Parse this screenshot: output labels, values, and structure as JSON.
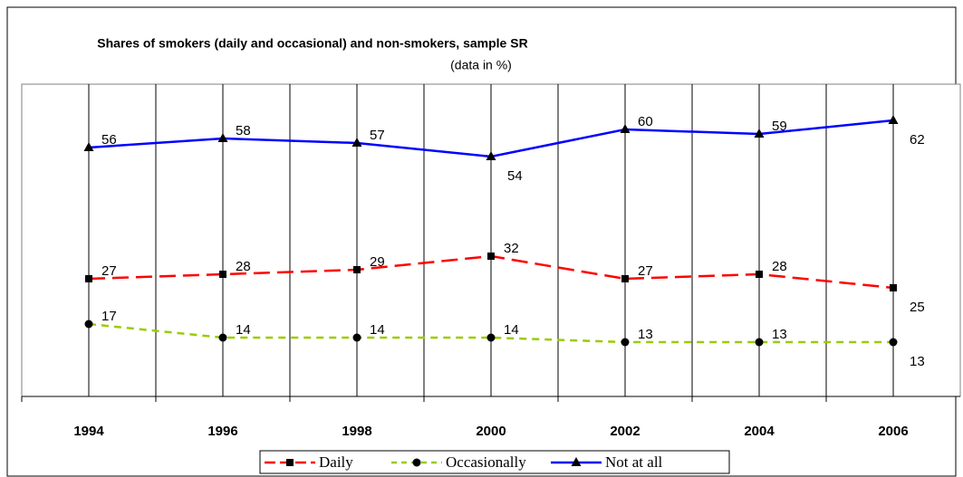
{
  "chart_data": {
    "type": "line",
    "title": "Shares of smokers (daily and occasional) and non-smokers, sample SR",
    "subtitle": "(data in %)",
    "categories": [
      "1994",
      "1996",
      "1998",
      "2000",
      "2002",
      "2004",
      "2006"
    ],
    "series": [
      {
        "name": "Daily",
        "color": "#ff0000",
        "values": [
          27,
          28,
          29,
          32,
          27,
          28,
          25
        ]
      },
      {
        "name": "Occasionally",
        "color": "#99cc00",
        "values": [
          17,
          14,
          14,
          14,
          13,
          13,
          13
        ]
      },
      {
        "name": "Not at all",
        "color": "#0000ff",
        "values": [
          56,
          58,
          57,
          54,
          60,
          59,
          62
        ]
      }
    ],
    "ylim": [
      0,
      70
    ]
  }
}
